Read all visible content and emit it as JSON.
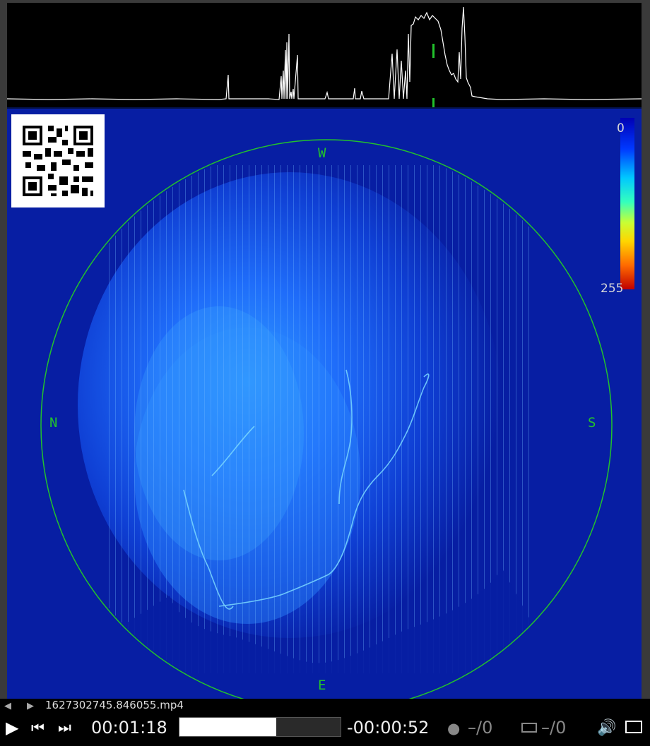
{
  "video": {
    "compass": {
      "north": "N",
      "south": "S",
      "west": "W",
      "east": "E"
    },
    "color_scale": {
      "min_label": "0",
      "max_label": "255"
    }
  },
  "player": {
    "file_name": "1627302745.846055.mp4",
    "elapsed": "00:01:18",
    "remaining": "-00:00:52",
    "progress_fraction": 0.6,
    "comments_count": "–/0",
    "subtitles_count": "–/0"
  },
  "colors": {
    "waveform": "#ffffff",
    "compass": "#22c22c",
    "background_sky": "#071ea3"
  }
}
